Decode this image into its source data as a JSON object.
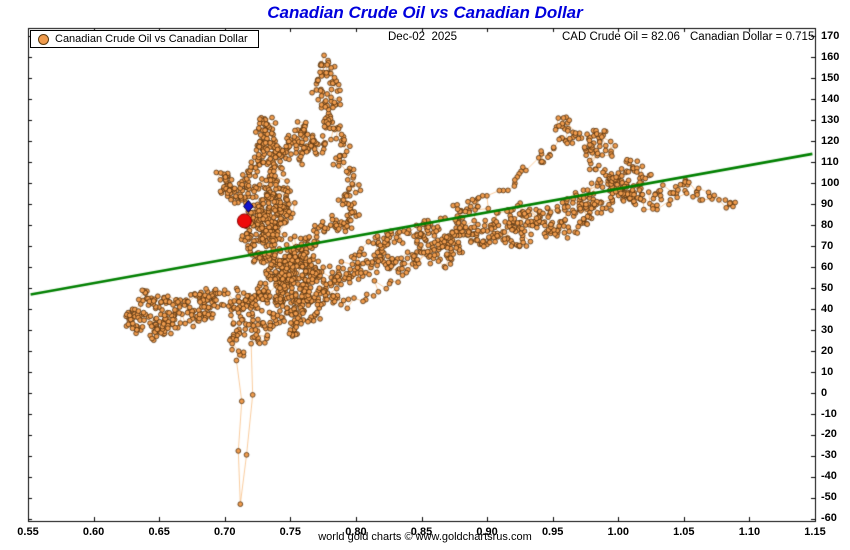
{
  "title": "Canadian Crude Oil vs Canadian Dollar",
  "legend": {
    "label": "Canadian Crude Oil vs Canadian Dollar"
  },
  "header": {
    "date": "Dec-02  2025",
    "crude": "CAD Crude Oil = 82.06",
    "dollar": "Canadian Dollar = 0.715"
  },
  "footer": {
    "credit": "world gold charts © www.goldchartsrus.com"
  },
  "colors": {
    "title": "#0000dd",
    "point_fill": "#ef9b4d",
    "point_stroke": "#4f2f0c",
    "connector": "#f6b878",
    "trend": "#008000",
    "latest": "#ee0a0a",
    "previous": "#1212cc",
    "axis": "#000000"
  },
  "chart_data": {
    "type": "scatter",
    "title": "Canadian Crude Oil vs Canadian Dollar",
    "xlabel": "",
    "ylabel": "",
    "grid": false,
    "legend_position": "top-left",
    "xlim": [
      0.55,
      1.15
    ],
    "ylim": [
      -61,
      174
    ],
    "x_ticks": [
      0.55,
      0.6,
      0.65,
      0.7,
      0.75,
      0.8,
      0.85,
      0.9,
      0.95,
      1.0,
      1.05,
      1.1,
      1.15
    ],
    "x_tick_labels": [
      "0.55",
      "0.60",
      "0.65",
      "0.70",
      "0.75",
      "0.80",
      "0.85",
      "0.90",
      "0.95",
      "1.00",
      "1.05",
      "1.10",
      "1.15"
    ],
    "y_ticks": [
      170,
      160,
      150,
      140,
      130,
      120,
      110,
      100,
      90,
      80,
      70,
      60,
      50,
      40,
      30,
      20,
      10,
      0,
      -10,
      -20,
      -30,
      -40,
      -50,
      -60
    ],
    "y_tick_labels": [
      "170",
      "160",
      "150",
      "140",
      "130",
      "120",
      "110",
      "100",
      "90",
      "80",
      "70",
      "60",
      "50",
      "40",
      "30",
      "20",
      "10",
      "0",
      "-10",
      "-20",
      "-30",
      "-40",
      "-50",
      "-60"
    ],
    "trend_line": {
      "x1": 0.552,
      "y1": 47,
      "x2": 1.148,
      "y2": 114
    },
    "latest_point": {
      "x": 0.715,
      "y": 82.06,
      "radius": 7
    },
    "previous_marker": {
      "x": 0.718,
      "y": 89,
      "size": 6,
      "shape": "diamond"
    },
    "series": [
      {
        "name": "Canadian Crude Oil vs Canadian Dollar",
        "points_per_segment": 12,
        "jitter_x": 0.009,
        "jitter_y": 6,
        "seed": 1337,
        "waypoints": [
          [
            0.636,
            30
          ],
          [
            0.627,
            34
          ],
          [
            0.632,
            40
          ],
          [
            0.641,
            36
          ],
          [
            0.65,
            31
          ],
          [
            0.661,
            37
          ],
          [
            0.646,
            44
          ],
          [
            0.636,
            47
          ],
          [
            0.656,
            46
          ],
          [
            0.669,
            41
          ],
          [
            0.68,
            34
          ],
          [
            0.69,
            38
          ],
          [
            0.682,
            46
          ],
          [
            0.7,
            48
          ],
          [
            0.662,
            32
          ],
          [
            0.645,
            28
          ],
          [
            0.655,
            35
          ],
          [
            0.672,
            45
          ],
          [
            0.695,
            43
          ],
          [
            0.71,
            47
          ],
          [
            0.718,
            42
          ],
          [
            0.728,
            46
          ],
          [
            0.739,
            44
          ],
          [
            0.748,
            50
          ],
          [
            0.76,
            54
          ],
          [
            0.775,
            58
          ],
          [
            0.79,
            56
          ],
          [
            0.805,
            60
          ],
          [
            0.82,
            63
          ],
          [
            0.835,
            60
          ],
          [
            0.85,
            66
          ],
          [
            0.865,
            62
          ],
          [
            0.88,
            68
          ],
          [
            0.872,
            74
          ],
          [
            0.858,
            68
          ],
          [
            0.883,
            78
          ],
          [
            0.897,
            72
          ],
          [
            0.91,
            78
          ],
          [
            0.925,
            70
          ],
          [
            0.935,
            82
          ],
          [
            0.95,
            76
          ],
          [
            0.965,
            86
          ],
          [
            0.98,
            90
          ],
          [
            1.0,
            95
          ],
          [
            1.02,
            92
          ],
          [
            1.04,
            97
          ],
          [
            1.055,
            99
          ],
          [
            1.07,
            92,
            6
          ],
          [
            1.085,
            90,
            4
          ],
          [
            1.09,
            91,
            3
          ],
          [
            1.06,
            95,
            5
          ],
          [
            1.03,
            88,
            8
          ],
          [
            1.005,
            96
          ],
          [
            0.985,
            105
          ],
          [
            0.975,
            118
          ],
          [
            0.985,
            126
          ],
          [
            0.995,
            115
          ],
          [
            0.97,
            122
          ],
          [
            0.955,
            130
          ],
          [
            0.962,
            120
          ],
          [
            0.94,
            112
          ],
          [
            0.915,
            98
          ],
          [
            0.87,
            72,
            8
          ],
          [
            0.83,
            55,
            8
          ],
          [
            0.795,
            42
          ],
          [
            0.775,
            50
          ],
          [
            0.8,
            56
          ],
          [
            0.825,
            63
          ],
          [
            0.855,
            70
          ],
          [
            0.88,
            76
          ],
          [
            0.905,
            72
          ],
          [
            0.925,
            80
          ],
          [
            0.945,
            86
          ],
          [
            0.965,
            92
          ],
          [
            0.985,
            98
          ],
          [
            1.0,
            104
          ],
          [
            1.012,
            110
          ],
          [
            1.022,
            102
          ],
          [
            1.008,
            94
          ],
          [
            0.995,
            103
          ],
          [
            1.01,
            97
          ],
          [
            0.988,
            88
          ],
          [
            0.97,
            93
          ],
          [
            0.978,
            82
          ],
          [
            0.958,
            76
          ],
          [
            0.938,
            86
          ],
          [
            0.918,
            80
          ],
          [
            0.928,
            88
          ],
          [
            0.908,
            83
          ],
          [
            0.888,
            76
          ],
          [
            0.876,
            86
          ],
          [
            0.894,
            92
          ],
          [
            0.866,
            80
          ],
          [
            0.846,
            72
          ],
          [
            0.856,
            80
          ],
          [
            0.836,
            75
          ],
          [
            0.816,
            68
          ],
          [
            0.826,
            76
          ],
          [
            0.806,
            70
          ],
          [
            0.786,
            56
          ],
          [
            0.766,
            46
          ],
          [
            0.746,
            38
          ],
          [
            0.726,
            31
          ],
          [
            0.706,
            36
          ],
          [
            0.716,
            45
          ],
          [
            0.731,
            52
          ],
          [
            0.756,
            58
          ],
          [
            0.771,
            62
          ],
          [
            0.761,
            50
          ],
          [
            0.751,
            42
          ],
          [
            0.781,
            48
          ],
          [
            0.771,
            38
          ],
          [
            0.756,
            31
          ],
          [
            0.741,
            48
          ],
          [
            0.751,
            60
          ],
          [
            0.761,
            68
          ],
          [
            0.746,
            62
          ],
          [
            0.731,
            55
          ],
          [
            0.741,
            65
          ],
          [
            0.756,
            72
          ],
          [
            0.766,
            64
          ],
          [
            0.756,
            40
          ],
          [
            0.751,
            26
          ],
          [
            0.761,
            45
          ],
          [
            0.771,
            55
          ],
          [
            0.756,
            63
          ],
          [
            0.746,
            58
          ],
          [
            0.751,
            68
          ],
          [
            0.741,
            55
          ],
          [
            0.721,
            36
          ],
          [
            0.706,
            26
          ],
          [
            0.712,
            18
          ],
          [
            0.715,
            -52,
            3
          ],
          [
            0.721,
            22,
            3
          ],
          [
            0.731,
            30
          ],
          [
            0.741,
            42
          ],
          [
            0.746,
            55
          ],
          [
            0.751,
            62
          ],
          [
            0.761,
            70
          ],
          [
            0.771,
            76
          ],
          [
            0.781,
            82
          ],
          [
            0.791,
            78
          ],
          [
            0.801,
            86
          ],
          [
            0.791,
            93
          ],
          [
            0.801,
            100
          ],
          [
            0.786,
            110
          ],
          [
            0.791,
            120
          ],
          [
            0.781,
            130
          ],
          [
            0.786,
            140
          ],
          [
            0.781,
            152
          ],
          [
            0.776,
            158
          ],
          [
            0.771,
            146
          ],
          [
            0.776,
            136
          ],
          [
            0.781,
            126
          ],
          [
            0.771,
            116
          ],
          [
            0.766,
            121
          ],
          [
            0.761,
            111
          ],
          [
            0.756,
            119
          ],
          [
            0.761,
            129
          ],
          [
            0.751,
            121
          ],
          [
            0.746,
            113
          ],
          [
            0.741,
            118
          ],
          [
            0.736,
            108
          ],
          [
            0.731,
            101
          ],
          [
            0.721,
            96
          ],
          [
            0.706,
            99
          ],
          [
            0.696,
            104
          ],
          [
            0.701,
            96
          ],
          [
            0.711,
            92
          ],
          [
            0.716,
            100
          ],
          [
            0.721,
            106
          ],
          [
            0.726,
            111
          ],
          [
            0.731,
            118
          ],
          [
            0.736,
            126
          ],
          [
            0.731,
            131
          ],
          [
            0.726,
            122
          ],
          [
            0.736,
            115
          ],
          [
            0.741,
            105
          ],
          [
            0.746,
            95
          ],
          [
            0.751,
            88
          ],
          [
            0.741,
            82
          ],
          [
            0.736,
            90
          ],
          [
            0.731,
            85
          ],
          [
            0.726,
            78
          ],
          [
            0.731,
            72
          ],
          [
            0.736,
            80
          ],
          [
            0.741,
            75
          ],
          [
            0.746,
            85
          ],
          [
            0.741,
            92
          ],
          [
            0.736,
            98
          ],
          [
            0.731,
            92
          ],
          [
            0.726,
            88
          ],
          [
            0.721,
            80
          ],
          [
            0.716,
            75
          ],
          [
            0.721,
            70
          ],
          [
            0.726,
            65
          ],
          [
            0.731,
            62
          ],
          [
            0.736,
            70
          ],
          [
            0.731,
            78
          ],
          [
            0.721,
            85
          ],
          [
            0.715,
            82.06,
            6
          ]
        ]
      }
    ]
  }
}
